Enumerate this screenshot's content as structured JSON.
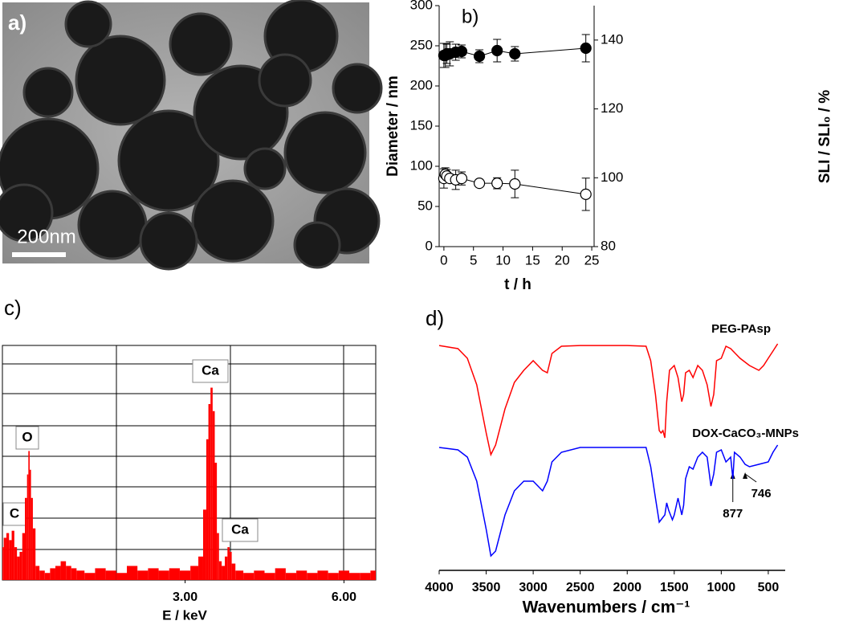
{
  "chart_data": [
    {
      "type": "image",
      "label": "a)",
      "scale_bar": "200nm"
    },
    {
      "type": "line",
      "label": "b)",
      "x_label": "t / h",
      "y_label": "Diameter / nm",
      "y2_label": "SLI / SLI₀ / %",
      "x": [
        0,
        0.25,
        0.5,
        1,
        2,
        3,
        6,
        9,
        12,
        24
      ],
      "xlim": [
        -0.8,
        25.4
      ],
      "xticks": [
        0,
        5,
        10,
        15,
        20,
        25
      ],
      "ylim": [
        0,
        300
      ],
      "yticks": [
        0,
        50,
        100,
        150,
        200,
        250,
        300
      ],
      "y2lim": [
        80,
        150
      ],
      "y2ticks": [
        80,
        100,
        120,
        140
      ],
      "series": [
        {
          "color": "#000000",
          "marker_fill": "#000000",
          "values": [
            238,
            238,
            240,
            240,
            242,
            243,
            237,
            244,
            240,
            247
          ],
          "errors": [
            15,
            15,
            12,
            15,
            10,
            8,
            8,
            14,
            9,
            17
          ]
        },
        {
          "color": "#000000",
          "marker_fill": "#ffffff",
          "axis": "y2",
          "values": [
            99.8,
            101,
            100.5,
            99.8,
            99.4,
            99.8,
            98.4,
            98.4,
            98.2,
            95.2
          ],
          "errors": [
            2.8,
            1.9,
            1.9,
            1.2,
            2.8,
            1.9,
            0.5,
            1.6,
            4,
            4.7
          ]
        }
      ]
    },
    {
      "type": "spectrum",
      "label": "c)",
      "x_label": "E / keV",
      "peak_labels": [
        "C",
        "O",
        "Ca",
        "Ca"
      ],
      "xlim": [
        -0.45,
        6.6
      ],
      "xticks": [
        {
          "value": 3,
          "label": "3.00"
        },
        {
          "value": 6,
          "label": "6.00"
        }
      ],
      "ylim": [
        0,
        100
      ],
      "series": [
        {
          "color": "#ff0000",
          "x": [
            -0.45,
            -0.4,
            -0.35,
            -0.3,
            -0.25,
            -0.2,
            -0.15,
            -0.1,
            -0.05,
            0,
            0.03,
            0.05,
            0.08,
            0.1,
            0.15,
            0.2,
            0.3,
            0.4,
            0.5,
            0.6,
            0.7,
            0.8,
            0.9,
            1.0,
            1.2,
            1.4,
            1.6,
            1.8,
            2.0,
            2.2,
            2.4,
            2.6,
            2.8,
            3.0,
            3.2,
            3.3,
            3.38,
            3.42,
            3.46,
            3.5,
            3.54,
            3.58,
            3.62,
            3.66,
            3.72,
            3.78,
            3.82,
            3.86,
            3.9,
            4.0,
            4.2,
            4.4,
            4.6,
            4.8,
            5.0,
            5.2,
            5.4,
            5.6,
            5.8,
            6.0,
            6.2,
            6.4,
            6.6
          ],
          "values": [
            14,
            18,
            20,
            17,
            21,
            14,
            10,
            12,
            20,
            35,
            45,
            55,
            47,
            35,
            22,
            6,
            4,
            3,
            5,
            6,
            8,
            6,
            5,
            4,
            3,
            5,
            4,
            3,
            6,
            4,
            5,
            4,
            5,
            4,
            6,
            10,
            30,
            60,
            75,
            82,
            72,
            50,
            20,
            8,
            6,
            10,
            14,
            12,
            7,
            4,
            3,
            4,
            3,
            5,
            3,
            4,
            3,
            4,
            3,
            4,
            3,
            3,
            4
          ]
        }
      ]
    },
    {
      "type": "line",
      "label": "d)",
      "x_label": "Wavenumbers / cm⁻¹",
      "xlim": [
        4000,
        320
      ],
      "xticks": [
        4000,
        3500,
        3000,
        2500,
        2000,
        1500,
        1000,
        500
      ],
      "ylim": [
        0,
        100
      ],
      "annotations": [
        877,
        746
      ],
      "series": [
        {
          "name": "PEG-PAsp",
          "color": "#ff0000",
          "x": [
            4000,
            3800,
            3700,
            3600,
            3500,
            3450,
            3400,
            3300,
            3200,
            3100,
            3000,
            2950,
            2900,
            2850,
            2800,
            2700,
            2500,
            2000,
            1800,
            1750,
            1700,
            1660,
            1640,
            1620,
            1600,
            1580,
            1550,
            1500,
            1460,
            1420,
            1400,
            1380,
            1340,
            1300,
            1250,
            1200,
            1150,
            1110,
            1080,
            1050,
            1000,
            950,
            900,
            850,
            800,
            700,
            600,
            550,
            500,
            450,
            400
          ],
          "values": [
            93.3,
            92,
            88,
            77,
            57,
            48,
            52,
            67,
            78,
            83,
            87,
            85,
            83,
            82,
            90,
            93,
            93.3,
            93.3,
            93,
            87,
            73,
            58,
            57,
            58,
            55,
            70,
            83,
            85,
            80,
            70,
            73,
            82,
            83,
            80,
            85,
            83,
            77,
            68,
            73,
            87,
            88,
            93,
            92,
            90,
            88,
            85,
            83,
            85,
            88,
            91,
            94
          ]
        },
        {
          "name": "DOX-CaCO₃-MNPs",
          "color": "#0000ff",
          "x": [
            4000,
            3800,
            3700,
            3600,
            3500,
            3450,
            3400,
            3300,
            3200,
            3100,
            3000,
            2950,
            2900,
            2850,
            2800,
            2700,
            2500,
            2000,
            1800,
            1750,
            1700,
            1660,
            1620,
            1600,
            1580,
            1560,
            1520,
            1500,
            1460,
            1420,
            1400,
            1380,
            1340,
            1300,
            1250,
            1200,
            1150,
            1110,
            1080,
            1050,
            1000,
            950,
            900,
            877,
            860,
            800,
            746,
            700,
            600,
            500,
            450,
            400
          ],
          "values": [
            51,
            50,
            47,
            37,
            17,
            6,
            8,
            23,
            33,
            37,
            37,
            35,
            33,
            37,
            45,
            49,
            51,
            51,
            51,
            43,
            30,
            20,
            22,
            23,
            28,
            25,
            21,
            23,
            30,
            23,
            27,
            38,
            43,
            42,
            47,
            49,
            47,
            35,
            40,
            49,
            50,
            45,
            47,
            38,
            49,
            47,
            44,
            43,
            44,
            45,
            49,
            52
          ]
        }
      ]
    }
  ]
}
